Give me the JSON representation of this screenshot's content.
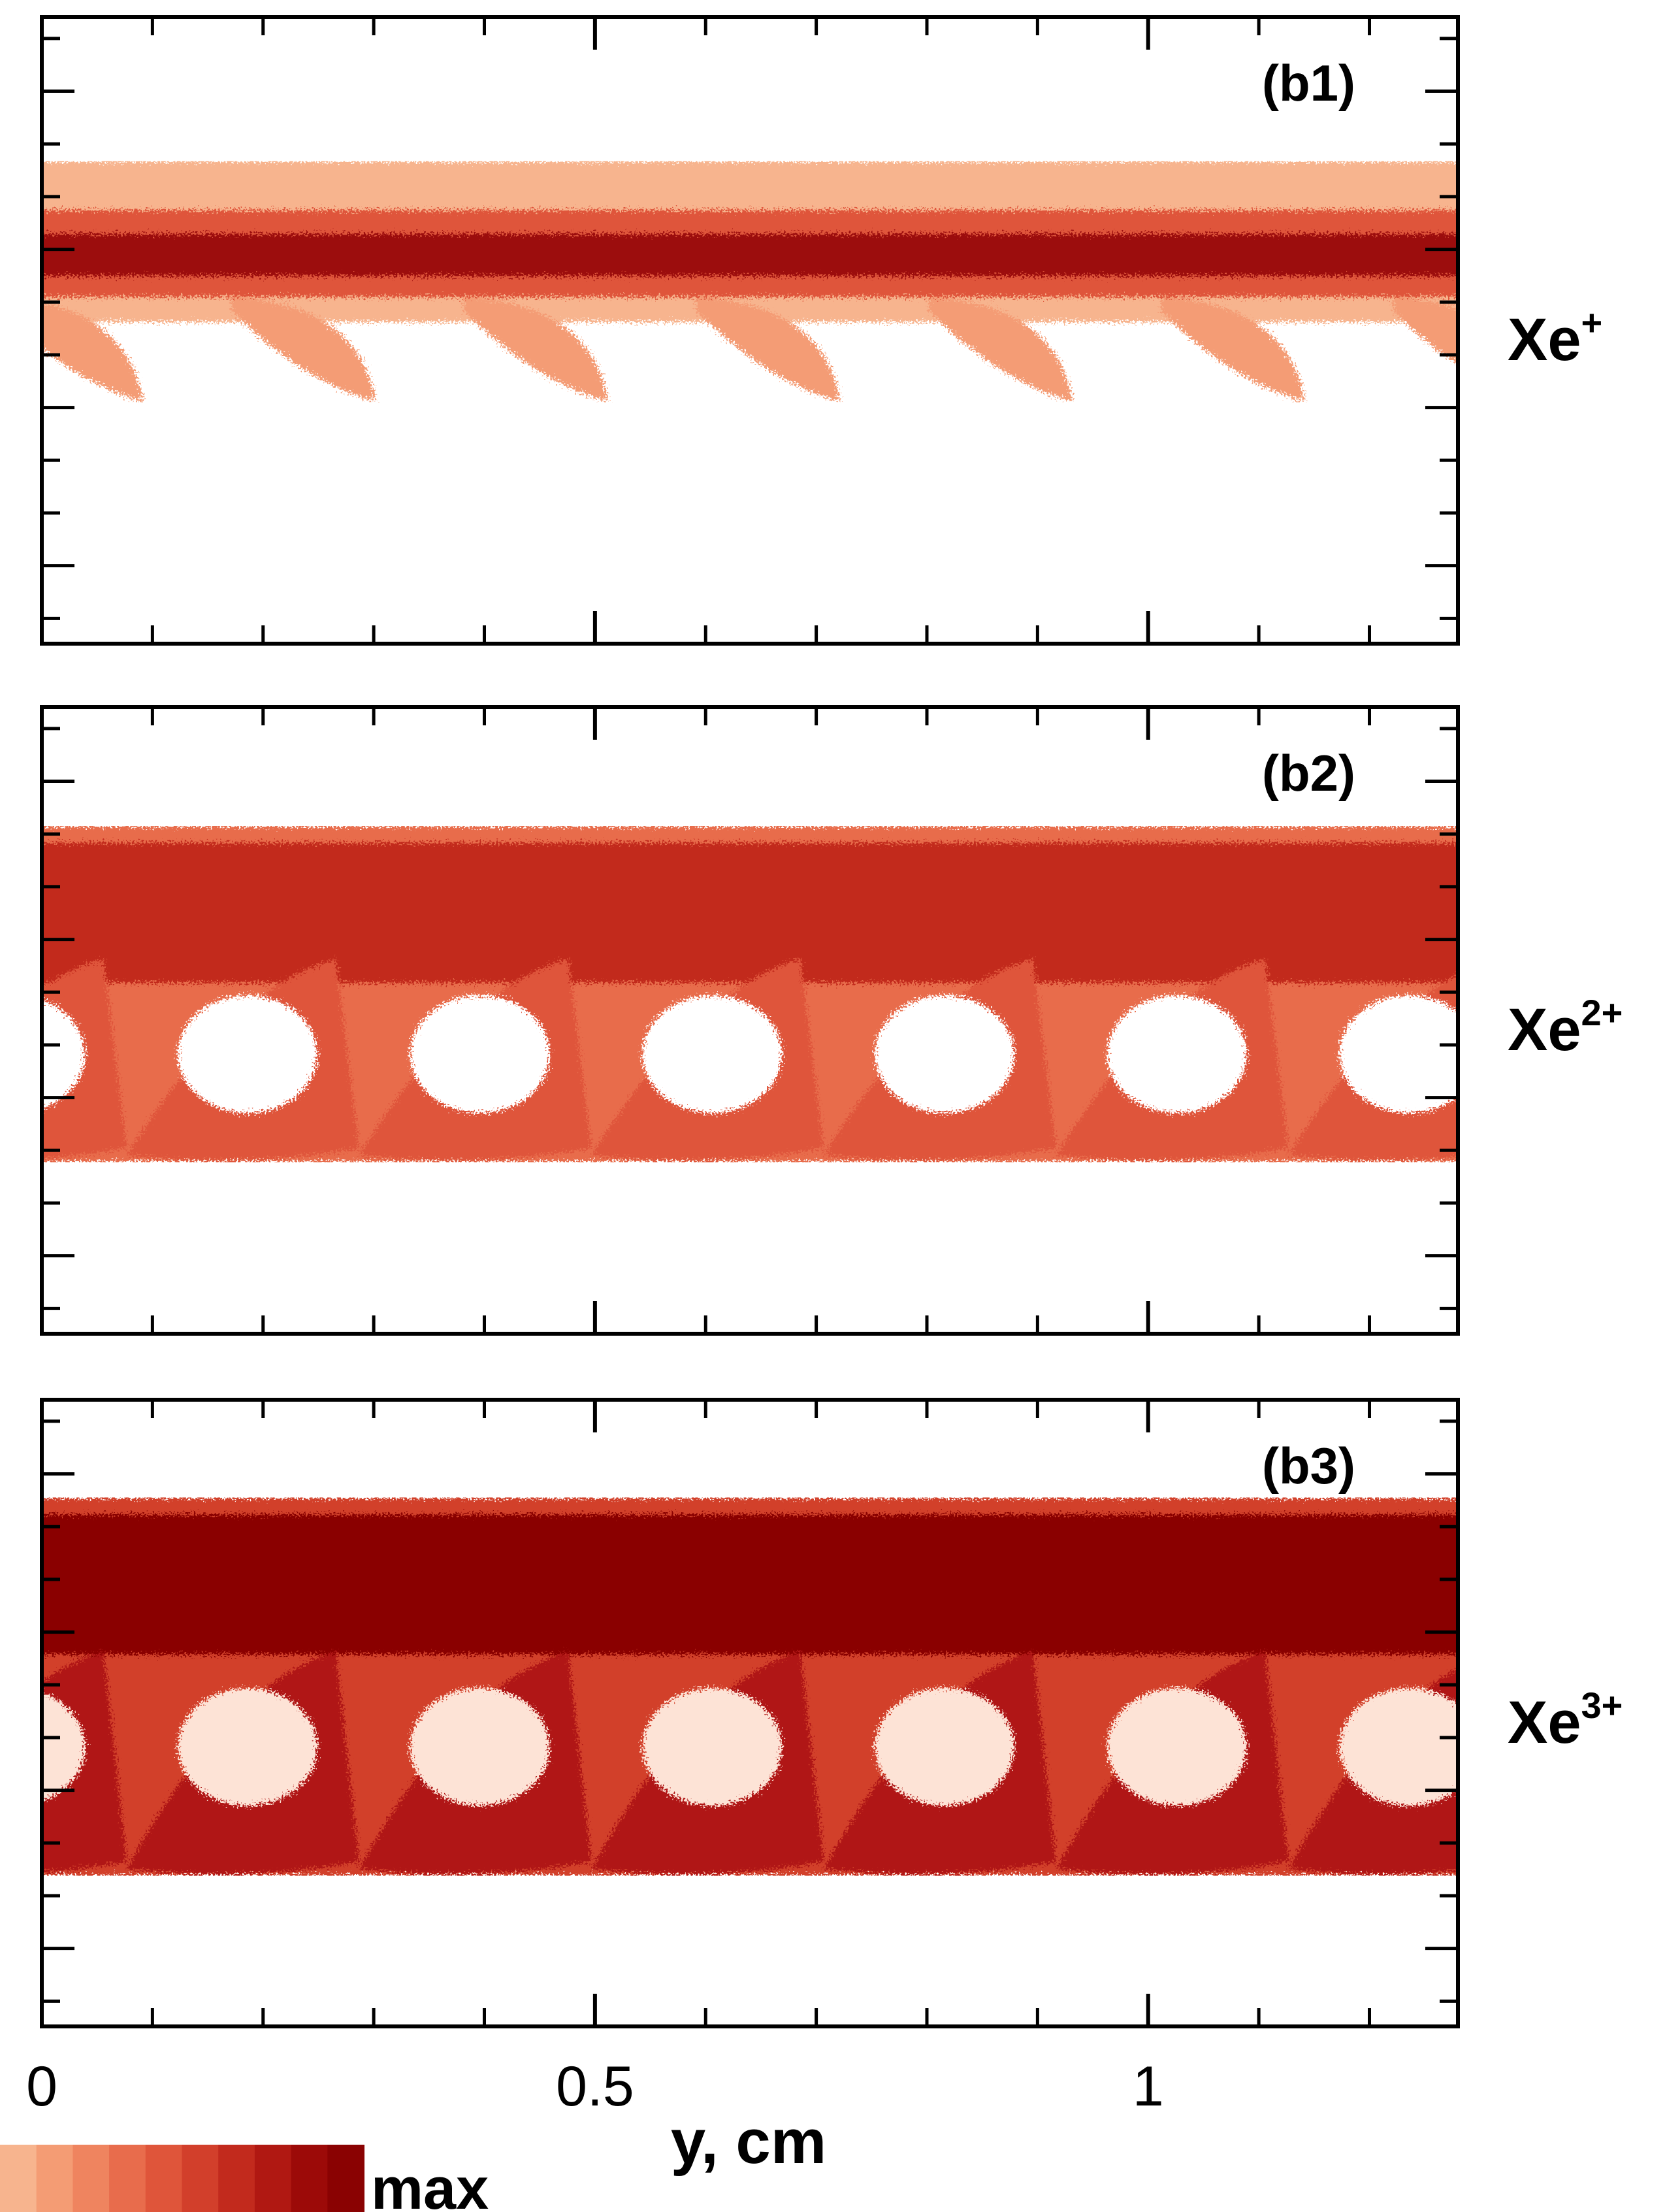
{
  "chart_data": {
    "type": "density",
    "x_label": "y, cm",
    "xlim": [
      0,
      1.28
    ],
    "xticks": [
      0,
      0.5,
      1
    ],
    "xminor_ticks": [
      0.1,
      0.2,
      0.3,
      0.4,
      0.6,
      0.7,
      0.8,
      0.9,
      1.1,
      1.2
    ],
    "panels": [
      {
        "label": "(b1)",
        "species": "Xe",
        "charge": "+"
      },
      {
        "label": "(b2)",
        "species": "Xe",
        "charge": "2+"
      },
      {
        "label": "(b3)",
        "species": "Xe",
        "charge": "3+"
      }
    ],
    "colorbar": {
      "colors": [
        "#f7b48e",
        "#f49c74",
        "#ef845f",
        "#e86c4c",
        "#df553a",
        "#d23f2b",
        "#c22a1d",
        "#b01812",
        "#9c0a08",
        "#8a0202"
      ],
      "label": "max"
    }
  }
}
